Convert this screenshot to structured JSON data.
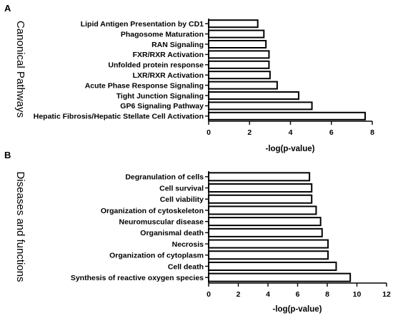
{
  "chart_data": [
    {
      "type": "bar",
      "orientation": "horizontal",
      "panel": "A",
      "side_label": "Canonical Pathways",
      "xlabel": "-log(p-value)",
      "xlim": [
        0,
        8
      ],
      "xticks": [
        0,
        2,
        4,
        6,
        8
      ],
      "categories": [
        "Lipid Antigen Presentation by CD1",
        "Phagosome Maturation",
        "RAN Signaling",
        "FXR/RXR Activation",
        "Unfolded protein response",
        "LXR/RXR Activation",
        "Acute Phase Response Signaling",
        "Tight Junction Signaling",
        "GP6 Signaling Pathway",
        "Hepatic Fibrosis/Hepatic Stellate Cell Activation"
      ],
      "values": [
        2.4,
        2.7,
        2.8,
        2.95,
        2.95,
        3.0,
        3.35,
        4.4,
        5.05,
        7.65
      ]
    },
    {
      "type": "bar",
      "orientation": "horizontal",
      "panel": "B",
      "side_label": "Diseases and functions",
      "xlabel": "-log(p-value)",
      "xlim": [
        0,
        12
      ],
      "xticks": [
        0,
        2,
        4,
        6,
        8,
        10,
        12
      ],
      "categories": [
        "Degranulation of cells",
        "Cell survival",
        "Cell viability",
        "Organization of cytoskeleton",
        "Neuromuscular disease",
        "Organismal death",
        "Necrosis",
        "Organization of cytoplasm",
        "Cell death",
        "Synthesis of reactive oxygen species"
      ],
      "values": [
        6.8,
        6.95,
        6.95,
        7.25,
        7.55,
        7.65,
        8.05,
        8.05,
        8.6,
        9.55
      ]
    }
  ]
}
